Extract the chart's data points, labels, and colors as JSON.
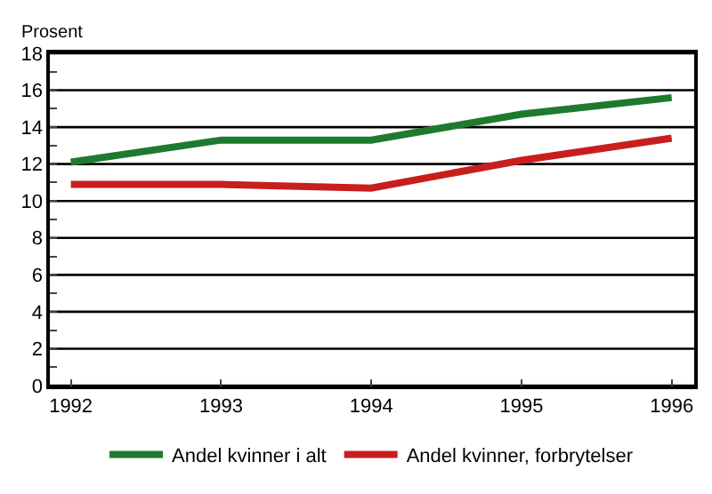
{
  "chart_data": {
    "type": "line",
    "ylabel": "Prosent",
    "x": [
      1992,
      1993,
      1994,
      1995,
      1996
    ],
    "series": [
      {
        "name": "Andel kvinner i alt",
        "color": "#1e7a2e",
        "values": [
          12.1,
          13.3,
          13.3,
          14.7,
          15.6
        ]
      },
      {
        "name": "Andel kvinner, forbrytelser",
        "color": "#c81e1e",
        "values": [
          10.9,
          10.9,
          10.7,
          12.2,
          13.4
        ]
      }
    ],
    "xlim": [
      1991.86,
      1996.15
    ],
    "xticks": [
      1992,
      1993,
      1994,
      1995,
      1996
    ],
    "ylim": [
      0,
      18
    ],
    "yticks": [
      0,
      {
        "value": 1,
        "label": null
      },
      2,
      {
        "value": 3,
        "label": null
      },
      4,
      {
        "value": 5,
        "label": null
      },
      6,
      {
        "value": 7,
        "label": null
      },
      8,
      {
        "value": 9,
        "label": null
      },
      10,
      {
        "value": 11,
        "label": null
      },
      12,
      {
        "value": 13,
        "label": null
      },
      14,
      {
        "value": 15,
        "label": null
      },
      16,
      {
        "value": 17,
        "label": null
      },
      18
    ],
    "grid": "y",
    "legend": "bottom",
    "marker": "none",
    "line_style": "solid"
  }
}
